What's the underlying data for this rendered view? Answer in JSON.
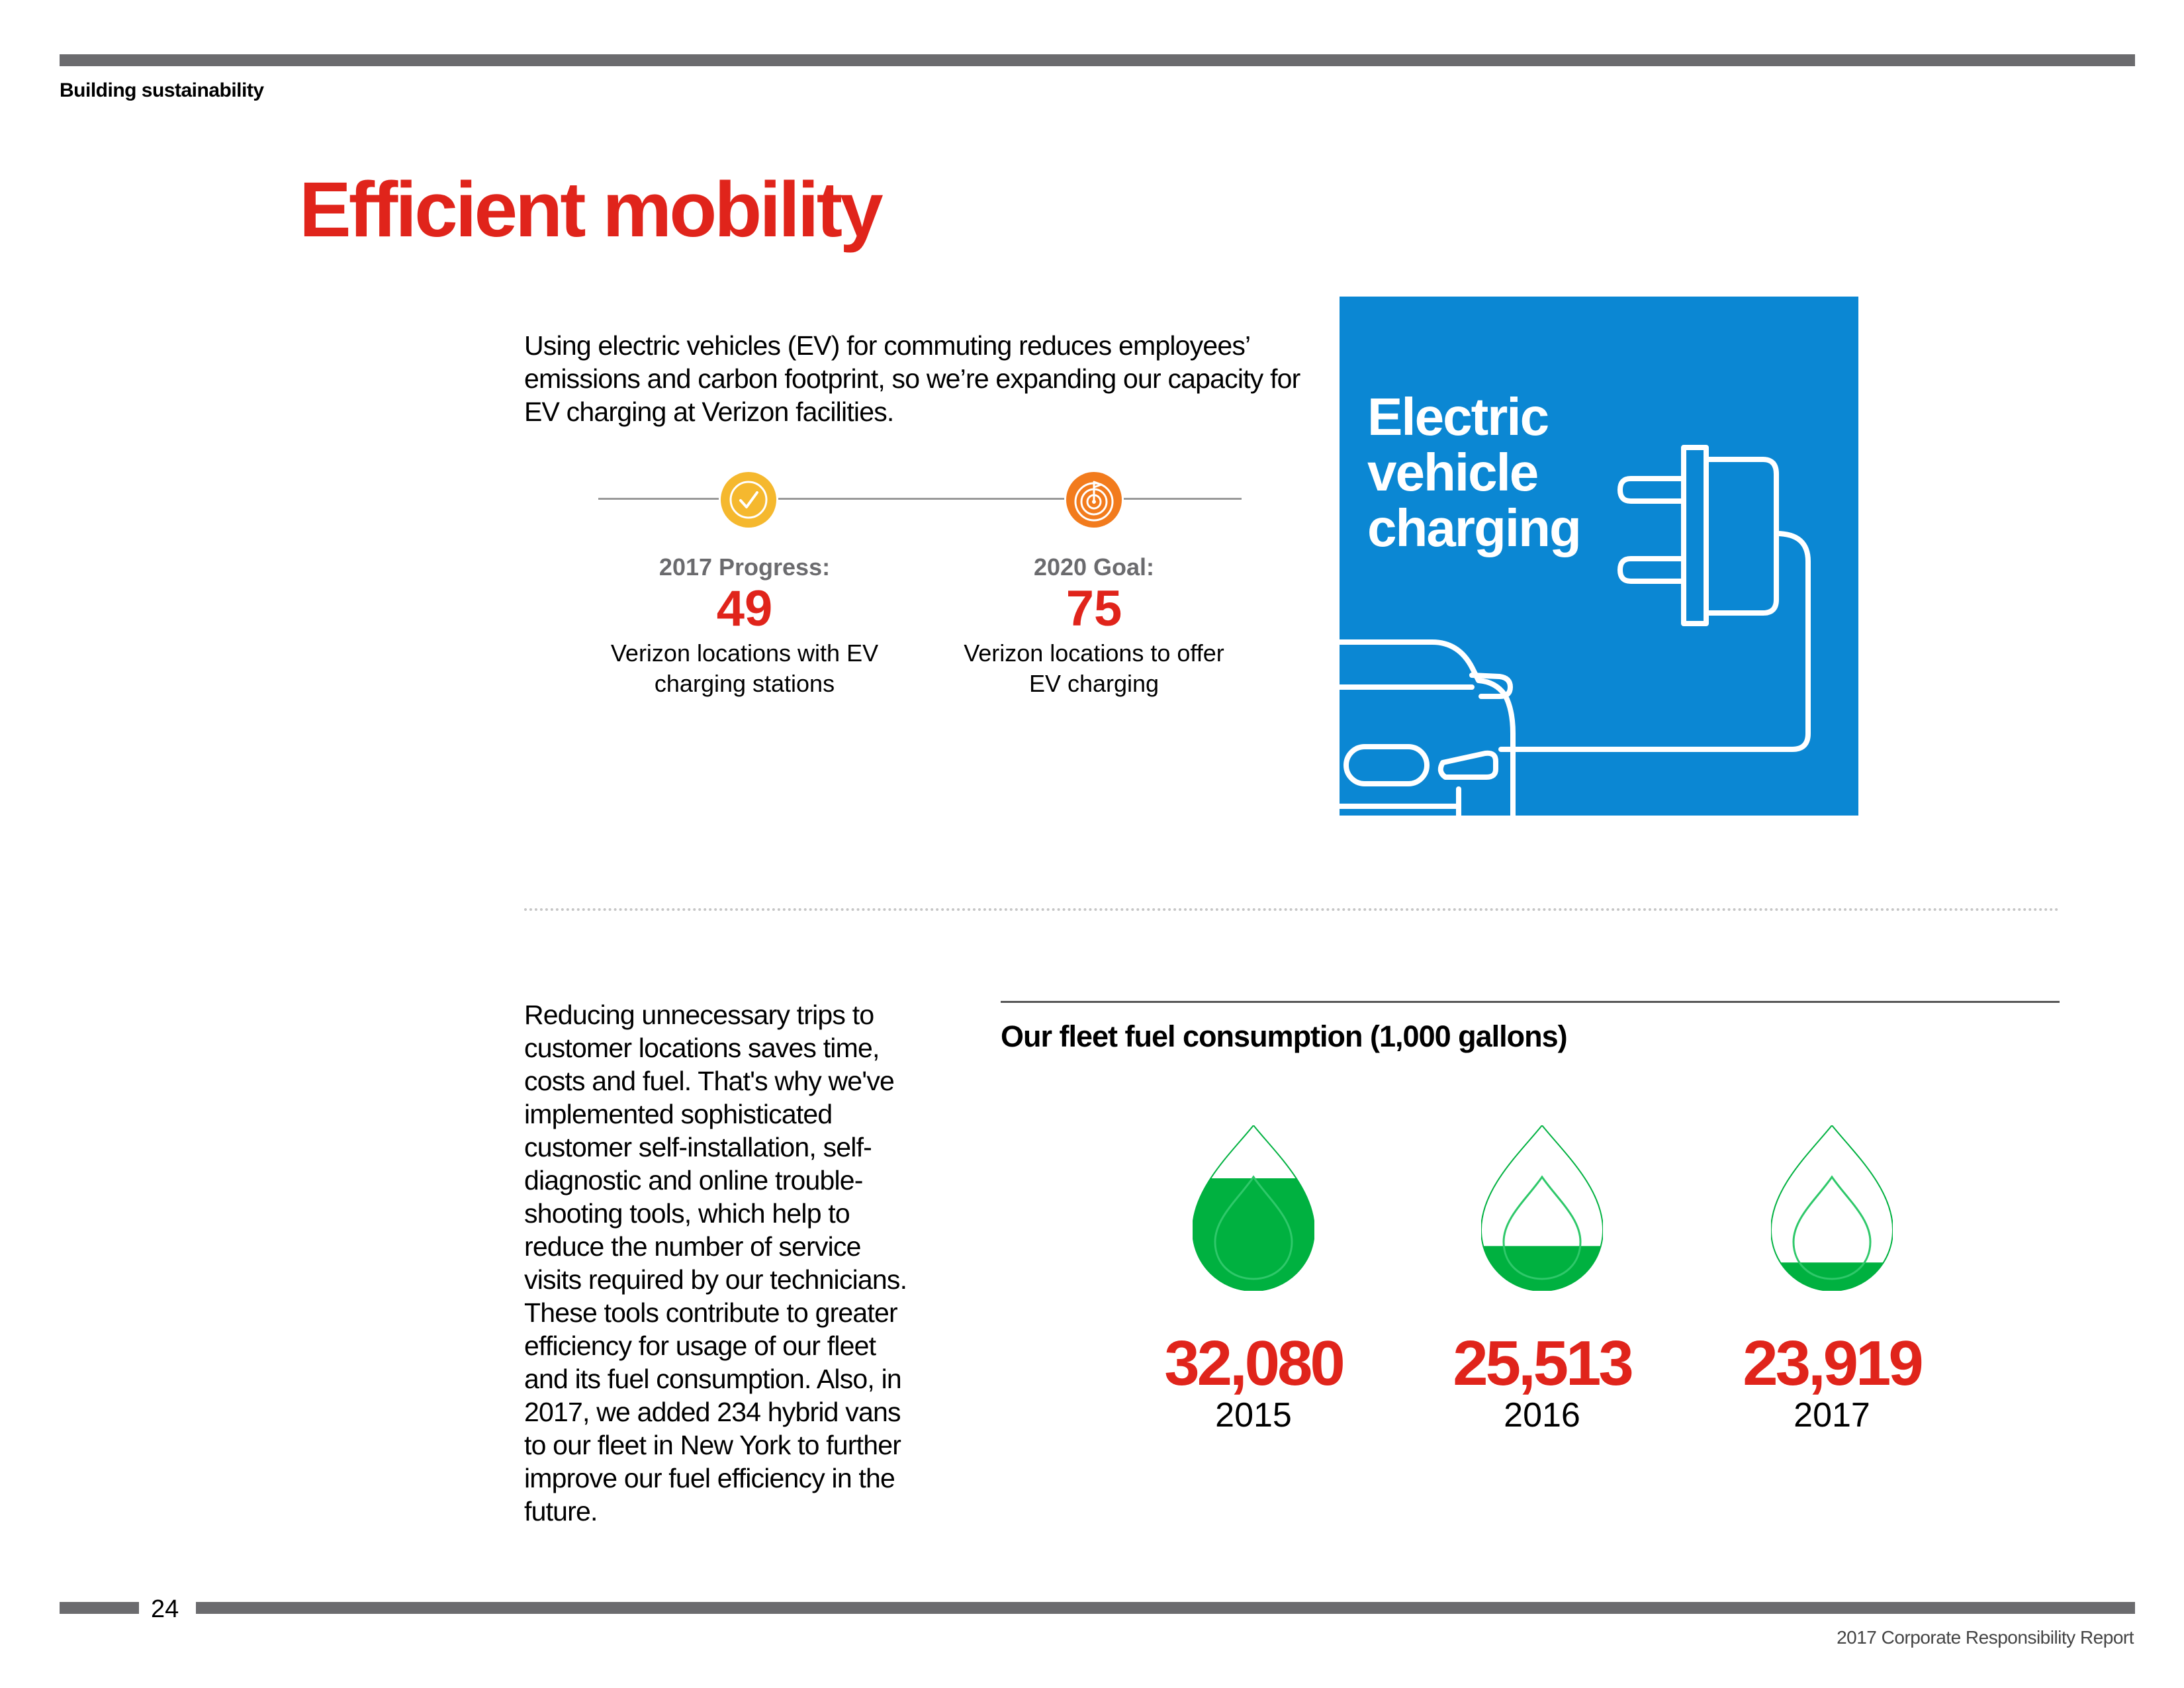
{
  "header": {
    "section": "Building sustainability"
  },
  "title": "Efficient mobility",
  "intro": "Using electric vehicles (EV) for commuting reduces employees’ emissions and carbon footprint, so we’re expanding our capacity for EV charging at Verizon facilities.",
  "progress": {
    "label": "2017 Progress:",
    "value": "49",
    "description": "Verizon locations with EV charging stations",
    "icon": "check-circle-icon",
    "color": "#f5b82e"
  },
  "goal": {
    "label": "2020 Goal:",
    "value": "75",
    "description": "Verizon locations to offer EV charging",
    "icon": "target-icon",
    "color": "#f27b1d"
  },
  "ev_panel": {
    "title": "Electric vehicle charging",
    "icon": "ev-charging-plug-car-icon",
    "color": "#0b87d3"
  },
  "fleet_text": "Reducing unnecessary trips to customer locations saves time, costs and fuel. That's why we've implemented sophisticated customer self-installation, self-diagnostic and online trouble-shooting tools, which help to reduce the number of service visits required by our technicians. These tools contribute to greater efficiency for usage of our fleet and its fuel consumption. Also, in 2017, we added 234 hybrid vans to our fleet in New York to further improve our fuel efficiency in the future.",
  "chart_data": {
    "type": "pictograph",
    "title": "Our fleet fuel consumption (1,000 gallons)",
    "categories": [
      "2015",
      "2016",
      "2017"
    ],
    "values": [
      32080,
      25513,
      23919
    ],
    "value_labels": [
      "32,080",
      "25,513",
      "23,919"
    ],
    "icon": "fuel-drop-icon",
    "color": "#00b140"
  },
  "footer": {
    "page_number": "24",
    "report": "2017 Corporate Responsibility Report"
  }
}
